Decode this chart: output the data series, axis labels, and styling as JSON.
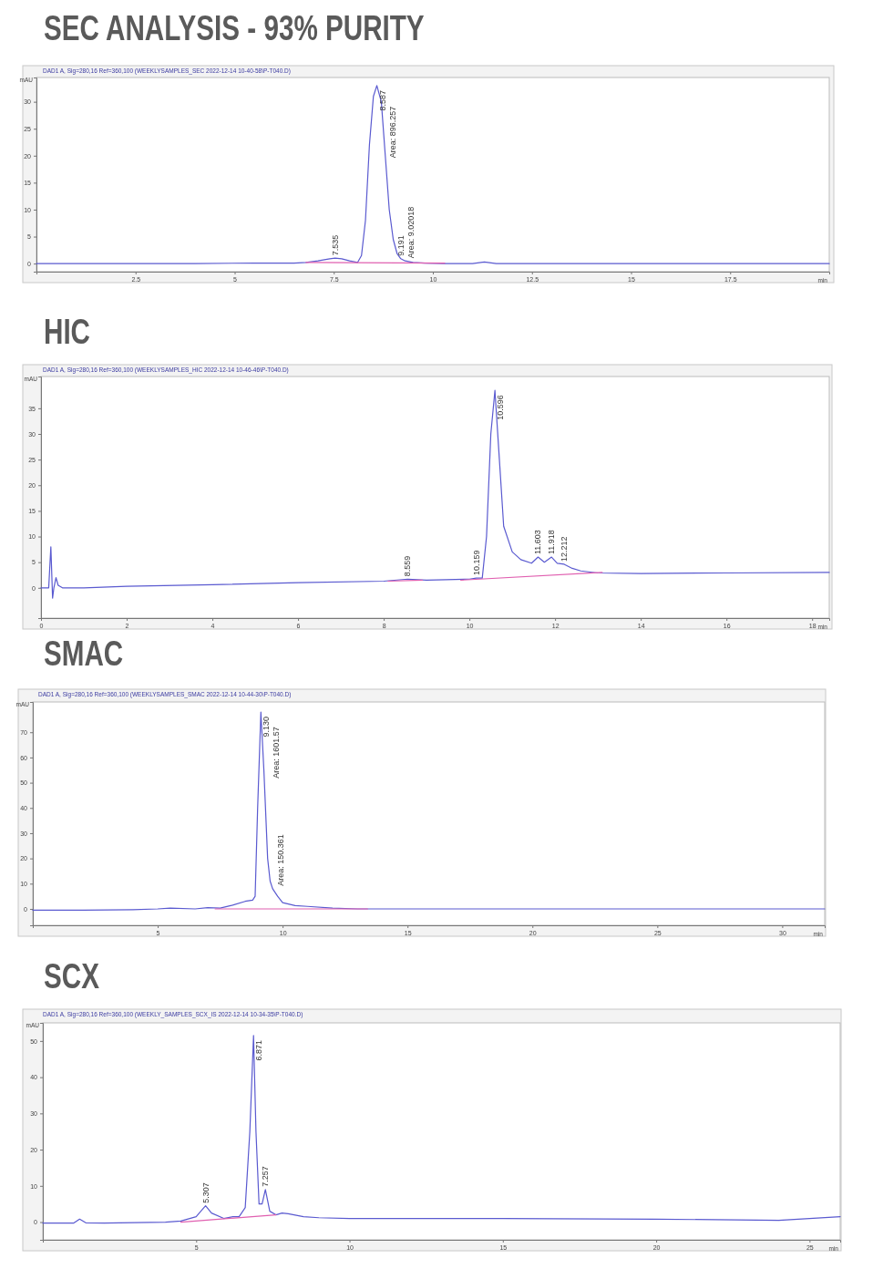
{
  "chart_data": [
    {
      "type": "line",
      "title": "SEC ANALYSIS - 93% PURITY",
      "subtitle": "DAD1 A, Sig=280,16 Ref=360,100 (WEEKLYSAMPLES_SEC 2022-12-14 10-40-58\\P-T040.D)",
      "xlabel": "min",
      "ylabel": "mAU",
      "xlim": [
        0,
        20
      ],
      "ylim": [
        -1.5,
        34.5
      ],
      "xticks": [
        2.5,
        5,
        7.5,
        10,
        12.5,
        15,
        17.5
      ],
      "yticks": [
        0,
        5,
        10,
        15,
        20,
        25,
        30
      ],
      "series": [
        {
          "color": "#5a5ad0",
          "x": [
            0,
            2,
            4,
            5.5,
            6.5,
            6.8,
            7.1,
            7.4,
            7.535,
            7.7,
            7.9,
            8.1,
            8.2,
            8.3,
            8.4,
            8.5,
            8.587,
            8.7,
            8.8,
            8.9,
            9.0,
            9.1,
            9.191,
            9.3,
            9.5,
            9.8,
            10.3,
            11,
            11.3,
            11.6,
            13,
            16,
            20
          ],
          "values": [
            0,
            0,
            0,
            0.1,
            0.1,
            0.2,
            0.5,
            0.9,
            1,
            0.9,
            0.5,
            0.2,
            1.5,
            8,
            22,
            31,
            33,
            30,
            20,
            10,
            4.5,
            1.8,
            0.9,
            0.5,
            0.2,
            0.1,
            0,
            0,
            0.3,
            0,
            0,
            0,
            0
          ]
        },
        {
          "color": "#e060b0",
          "x": [
            6.8,
            10.3
          ],
          "values": [
            0.2,
            0.1
          ]
        }
      ],
      "annotations": [
        {
          "text": "7.535",
          "x": 7.535,
          "y": 1
        },
        {
          "text": "8.587",
          "x": 8.587,
          "y": 33
        },
        {
          "text": "Area: 896.257",
          "x": 8.65,
          "y": 30
        },
        {
          "text": "9.191",
          "x": 9.191,
          "y": 0.9
        },
        {
          "text": "Area: 9.02018",
          "x": 9.25,
          "y": 0.5
        }
      ]
    },
    {
      "type": "line",
      "title": "HIC",
      "subtitle": "DAD1 A, Sig=280,16 Ref=360,100 (WEEKLYSAMPLES_HIC 2022-12-14 10-46-46\\P-T040.D)",
      "xlabel": "min",
      "ylabel": "mAU",
      "xlim": [
        0,
        18.4
      ],
      "ylim": [
        -5.9,
        41.2
      ],
      "xticks": [
        0,
        2,
        4,
        6,
        8,
        10,
        12,
        14,
        16,
        18
      ],
      "yticks": [
        0,
        5,
        10,
        15,
        20,
        25,
        30,
        35
      ],
      "series": [
        {
          "color": "#5a5ad0",
          "x": [
            0,
            0.18,
            0.23,
            0.27,
            0.3,
            0.35,
            0.4,
            0.5,
            1,
            2,
            4,
            6,
            8,
            8.559,
            9,
            10,
            10.159,
            10.3,
            10.4,
            10.5,
            10.596,
            10.7,
            10.8,
            11,
            11.2,
            11.45,
            11.603,
            11.75,
            11.918,
            12.05,
            12.212,
            12.4,
            12.6,
            13,
            14,
            16,
            18.4
          ],
          "values": [
            0,
            0,
            8,
            -2,
            0,
            2,
            0.5,
            0,
            0,
            0.3,
            0.6,
            1,
            1.3,
            1.7,
            1.5,
            1.7,
            1.9,
            1.9,
            10,
            30,
            38.5,
            25,
            12,
            7,
            5.5,
            4.8,
            6,
            5,
            6,
            4.8,
            4.6,
            3.8,
            3.3,
            2.9,
            2.8,
            2.9,
            3
          ]
        },
        {
          "color": "#e060b0",
          "x": [
            8.1,
            8.9,
            null,
            9.8,
            13.1
          ],
          "values": [
            1.3,
            1.5,
            null,
            1.5,
            3
          ]
        }
      ],
      "annotations": [
        {
          "text": "8.559",
          "x": 8.559,
          "y": 1.7
        },
        {
          "text": "10.159",
          "x": 10.159,
          "y": 1.9
        },
        {
          "text": "10.596",
          "x": 10.596,
          "y": 38.5
        },
        {
          "text": "11.603",
          "x": 11.603,
          "y": 6
        },
        {
          "text": "11.918",
          "x": 11.918,
          "y": 6
        },
        {
          "text": "12.212",
          "x": 12.212,
          "y": 4.6
        }
      ]
    },
    {
      "type": "line",
      "title": "SMAC",
      "subtitle": "DAD1 A, Sig=280,16 Ref=360,100 (WEEKLYSAMPLES_SMAC 2022-12-14 10-44-30\\P-T040.D)",
      "xlabel": "min",
      "ylabel": "mAU",
      "xlim": [
        0,
        31.7
      ],
      "ylim": [
        -6.5,
        82
      ],
      "xticks": [
        5,
        10,
        15,
        20,
        25,
        30
      ],
      "yticks": [
        0,
        10,
        20,
        30,
        40,
        50,
        60,
        70
      ],
      "series": [
        {
          "color": "#5a5ad0",
          "x": [
            0,
            2,
            4,
            5,
            5.5,
            6.5,
            7,
            7.5,
            8,
            8.5,
            8.8,
            8.9,
            9.0,
            9.13,
            9.25,
            9.4,
            9.5,
            9.6,
            9.8,
            10,
            10.5,
            11,
            12,
            13,
            16,
            20,
            25,
            31.7
          ],
          "values": [
            -0.5,
            -0.5,
            -0.3,
            0,
            0.3,
            0,
            0.5,
            0.3,
            1.5,
            3,
            3.5,
            5,
            40,
            78,
            55,
            20,
            11,
            8,
            5,
            2.5,
            1.3,
            1,
            0.3,
            0,
            0,
            0,
            0,
            0
          ]
        },
        {
          "color": "#e060b0",
          "x": [
            7.3,
            13.4
          ],
          "values": [
            0,
            0
          ]
        }
      ],
      "annotations": [
        {
          "text": "9.130",
          "x": 9.13,
          "y": 78
        },
        {
          "text": "Area: 1601.57",
          "x": 9.2,
          "y": 74
        },
        {
          "text": "Area: 150.361",
          "x": 9.65,
          "y": 8
        }
      ]
    },
    {
      "type": "line",
      "title": "SCX",
      "subtitle": "DAD1 A, Sig=280,16 Ref=360,100 (WEEKLY_SAMPLES_SCX_IS 2022-12-14 10-34-35\\P-T040.D)",
      "xlabel": "min",
      "ylabel": "mAU",
      "xlim": [
        0,
        26
      ],
      "ylim": [
        -4.9,
        55
      ],
      "xticks": [
        5,
        10,
        15,
        20,
        25
      ],
      "yticks": [
        0,
        10,
        20,
        30,
        40,
        50
      ],
      "series": [
        {
          "color": "#5a5ad0",
          "x": [
            0,
            1,
            1.2,
            1.4,
            2,
            4,
            4.5,
            5.0,
            5.1,
            5.307,
            5.5,
            5.9,
            6.2,
            6.4,
            6.6,
            6.75,
            6.871,
            6.95,
            7.05,
            7.15,
            7.257,
            7.4,
            7.6,
            7.8,
            8,
            8.5,
            9,
            10,
            15,
            20,
            24,
            25,
            26
          ],
          "values": [
            -0.3,
            -0.3,
            0.8,
            -0.2,
            -0.3,
            0,
            0.3,
            1.5,
            2.5,
            4.5,
            2.5,
            1,
            1.5,
            1.5,
            4,
            25,
            51.5,
            25,
            5,
            5,
            9,
            3,
            2,
            2.5,
            2.3,
            1.5,
            1.2,
            1,
            1,
            0.8,
            0.5,
            1,
            1.5
          ]
        },
        {
          "color": "#e060b0",
          "x": [
            4.5,
            7.6
          ],
          "values": [
            0,
            2
          ]
        }
      ],
      "annotations": [
        {
          "text": "5.307",
          "x": 5.307,
          "y": 4.5
        },
        {
          "text": "6.871",
          "x": 6.871,
          "y": 51.5
        },
        {
          "text": "7.257",
          "x": 7.257,
          "y": 9
        }
      ]
    }
  ]
}
